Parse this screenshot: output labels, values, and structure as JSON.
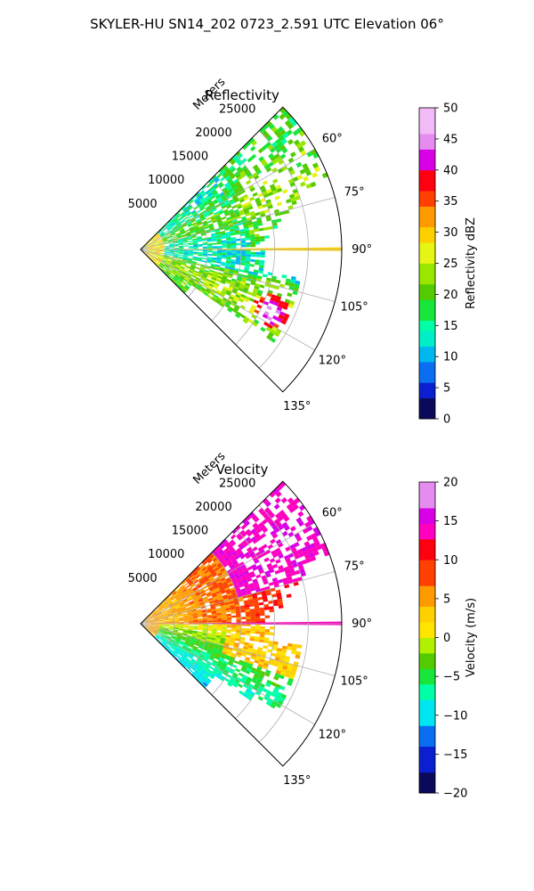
{
  "figure": {
    "title": "SKYLER-HU  SN14_202  0723_2.591 UTC Elevation 06°"
  },
  "chart_data": [
    {
      "type": "heatmap",
      "projection": "polar-sector",
      "title": "Reflectivity",
      "radial_axis_label": "Meters",
      "azimuth_ticks": [
        "60°",
        "75°",
        "90°",
        "105°",
        "120°",
        "135°"
      ],
      "azimuth_tick_values": [
        60,
        75,
        90,
        105,
        120,
        135
      ],
      "azimuth_range": [
        45,
        135
      ],
      "range_ticks": [
        "5000",
        "10000",
        "15000",
        "20000",
        "25000"
      ],
      "range_tick_values": [
        5000,
        10000,
        15000,
        20000,
        25000
      ],
      "range_max": 30000,
      "grid": true,
      "colorbar": {
        "label": "Reflectivity dBZ",
        "vmin": 0,
        "vmax": 50,
        "ticks": [
          "0",
          "5",
          "10",
          "15",
          "20",
          "25",
          "30",
          "35",
          "40",
          "45",
          "50"
        ],
        "tick_values": [
          0,
          5,
          10,
          15,
          20,
          25,
          30,
          35,
          40,
          45,
          50
        ]
      },
      "colors": {
        "0": "#0b0a5a",
        "3": "#0a1fcf",
        "6": "#0a6ef0",
        "9": "#00b7f0",
        "12": "#00eec8",
        "14": "#00ffa6",
        "16": "#18e63a",
        "19": "#52cc00",
        "22": "#9ae600",
        "25": "#e6f514",
        "28": "#ffd000",
        "31": "#ff9a00",
        "34": "#ff4000",
        "37": "#ff0010",
        "40": "#d800e6",
        "43": "#e48cf0",
        "46": "#f3baf8",
        "50": "#fbe6fd"
      }
    },
    {
      "type": "heatmap",
      "projection": "polar-sector",
      "title": "Velocity",
      "radial_axis_label": "Meters",
      "azimuth_ticks": [
        "60°",
        "75°",
        "90°",
        "105°",
        "120°",
        "135°"
      ],
      "azimuth_tick_values": [
        60,
        75,
        90,
        105,
        120,
        135
      ],
      "azimuth_range": [
        45,
        135
      ],
      "range_ticks": [
        "5000",
        "10000",
        "15000",
        "20000",
        "25000"
      ],
      "range_tick_values": [
        5000,
        10000,
        15000,
        20000,
        25000
      ],
      "range_max": 30000,
      "grid": true,
      "colorbar": {
        "label": "Velocity (m/s)",
        "vmin": -20,
        "vmax": 20,
        "ticks": [
          "−20",
          "−15",
          "−10",
          "−5",
          "0",
          "5",
          "10",
          "15",
          "20"
        ],
        "tick_values": [
          -20,
          -15,
          -10,
          -5,
          0,
          5,
          10,
          15,
          20
        ]
      },
      "colors": {
        "-20": "#0b0a5a",
        "-17": "#0a1fcf",
        "-14": "#0a6ef0",
        "-11": "#00e6f0",
        "-8": "#00ffa6",
        "-6": "#18e63a",
        "-4": "#52cc00",
        "-2": "#b0f000",
        "0": "#ffe400",
        "2": "#ffd000",
        "4": "#ff9a00",
        "7": "#ff4000",
        "10": "#ff0010",
        "13": "#ff00c0",
        "15": "#d800e6",
        "17": "#e48cf0",
        "20": "#fbe6fd"
      }
    }
  ]
}
